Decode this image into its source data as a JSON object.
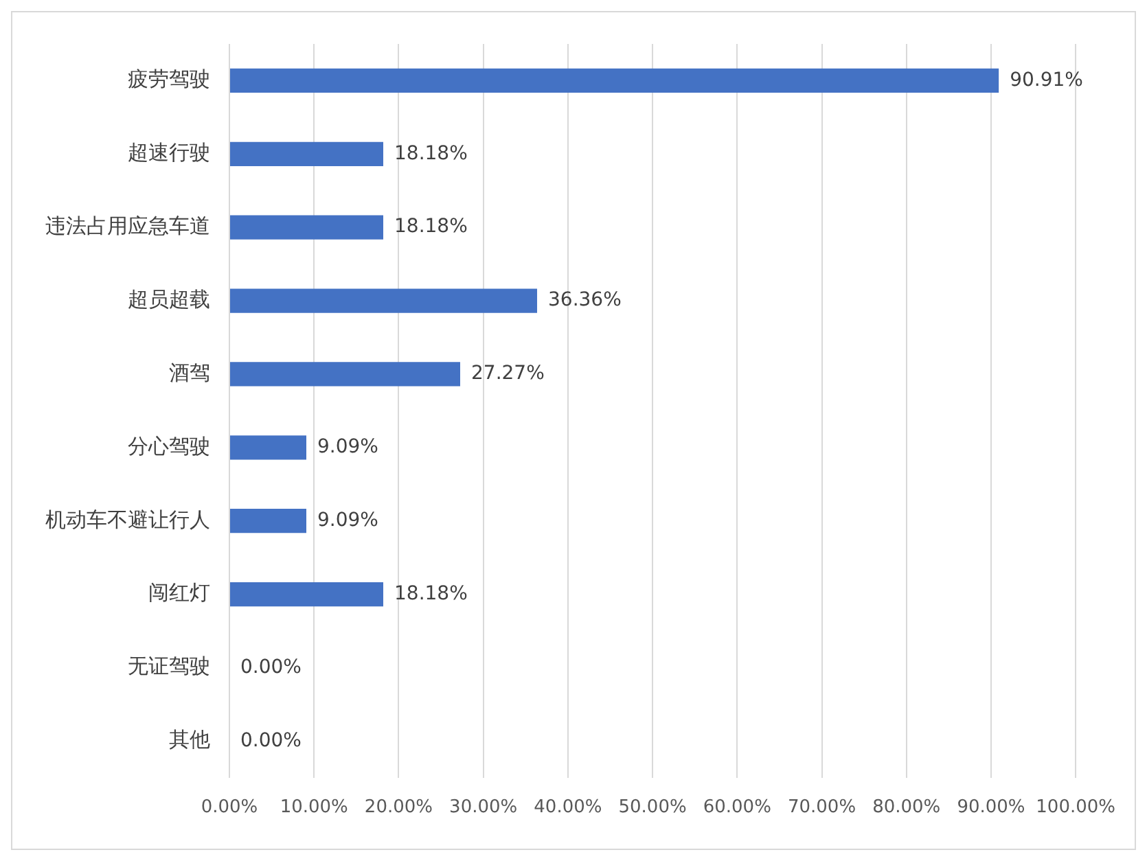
{
  "chart_data": {
    "type": "bar",
    "orientation": "horizontal",
    "categories": [
      "疲劳驾驶",
      "超速行驶",
      "违法占用应急车道",
      "超员超载",
      "酒驾",
      "分心驾驶",
      "机动车不避让行人",
      "闯红灯",
      "无证驾驶",
      "其他"
    ],
    "values": [
      90.91,
      18.18,
      18.18,
      36.36,
      27.27,
      9.09,
      9.09,
      18.18,
      0,
      0
    ],
    "value_labels": [
      "90.91%",
      "18.18%",
      "18.18%",
      "36.36%",
      "27.27%",
      "9.09%",
      "9.09%",
      "18.18%",
      "0.00%",
      "0.00%"
    ],
    "color": "#4472c4",
    "xlim": [
      0,
      100
    ],
    "xticks": [
      {
        "value": 0,
        "label": "0.00%"
      },
      {
        "value": 10,
        "label": "10.00%"
      },
      {
        "value": 20,
        "label": "20.00%"
      },
      {
        "value": 30,
        "label": "30.00%"
      },
      {
        "value": 40,
        "label": "40.00%"
      },
      {
        "value": 50,
        "label": "50.00%"
      },
      {
        "value": 60,
        "label": "60.00%"
      },
      {
        "value": 70,
        "label": "70.00%"
      },
      {
        "value": 80,
        "label": "80.00%"
      },
      {
        "value": 90,
        "label": "90.00%"
      },
      {
        "value": 100,
        "label": "100.00%"
      }
    ],
    "grid": "x",
    "legend": false
  }
}
